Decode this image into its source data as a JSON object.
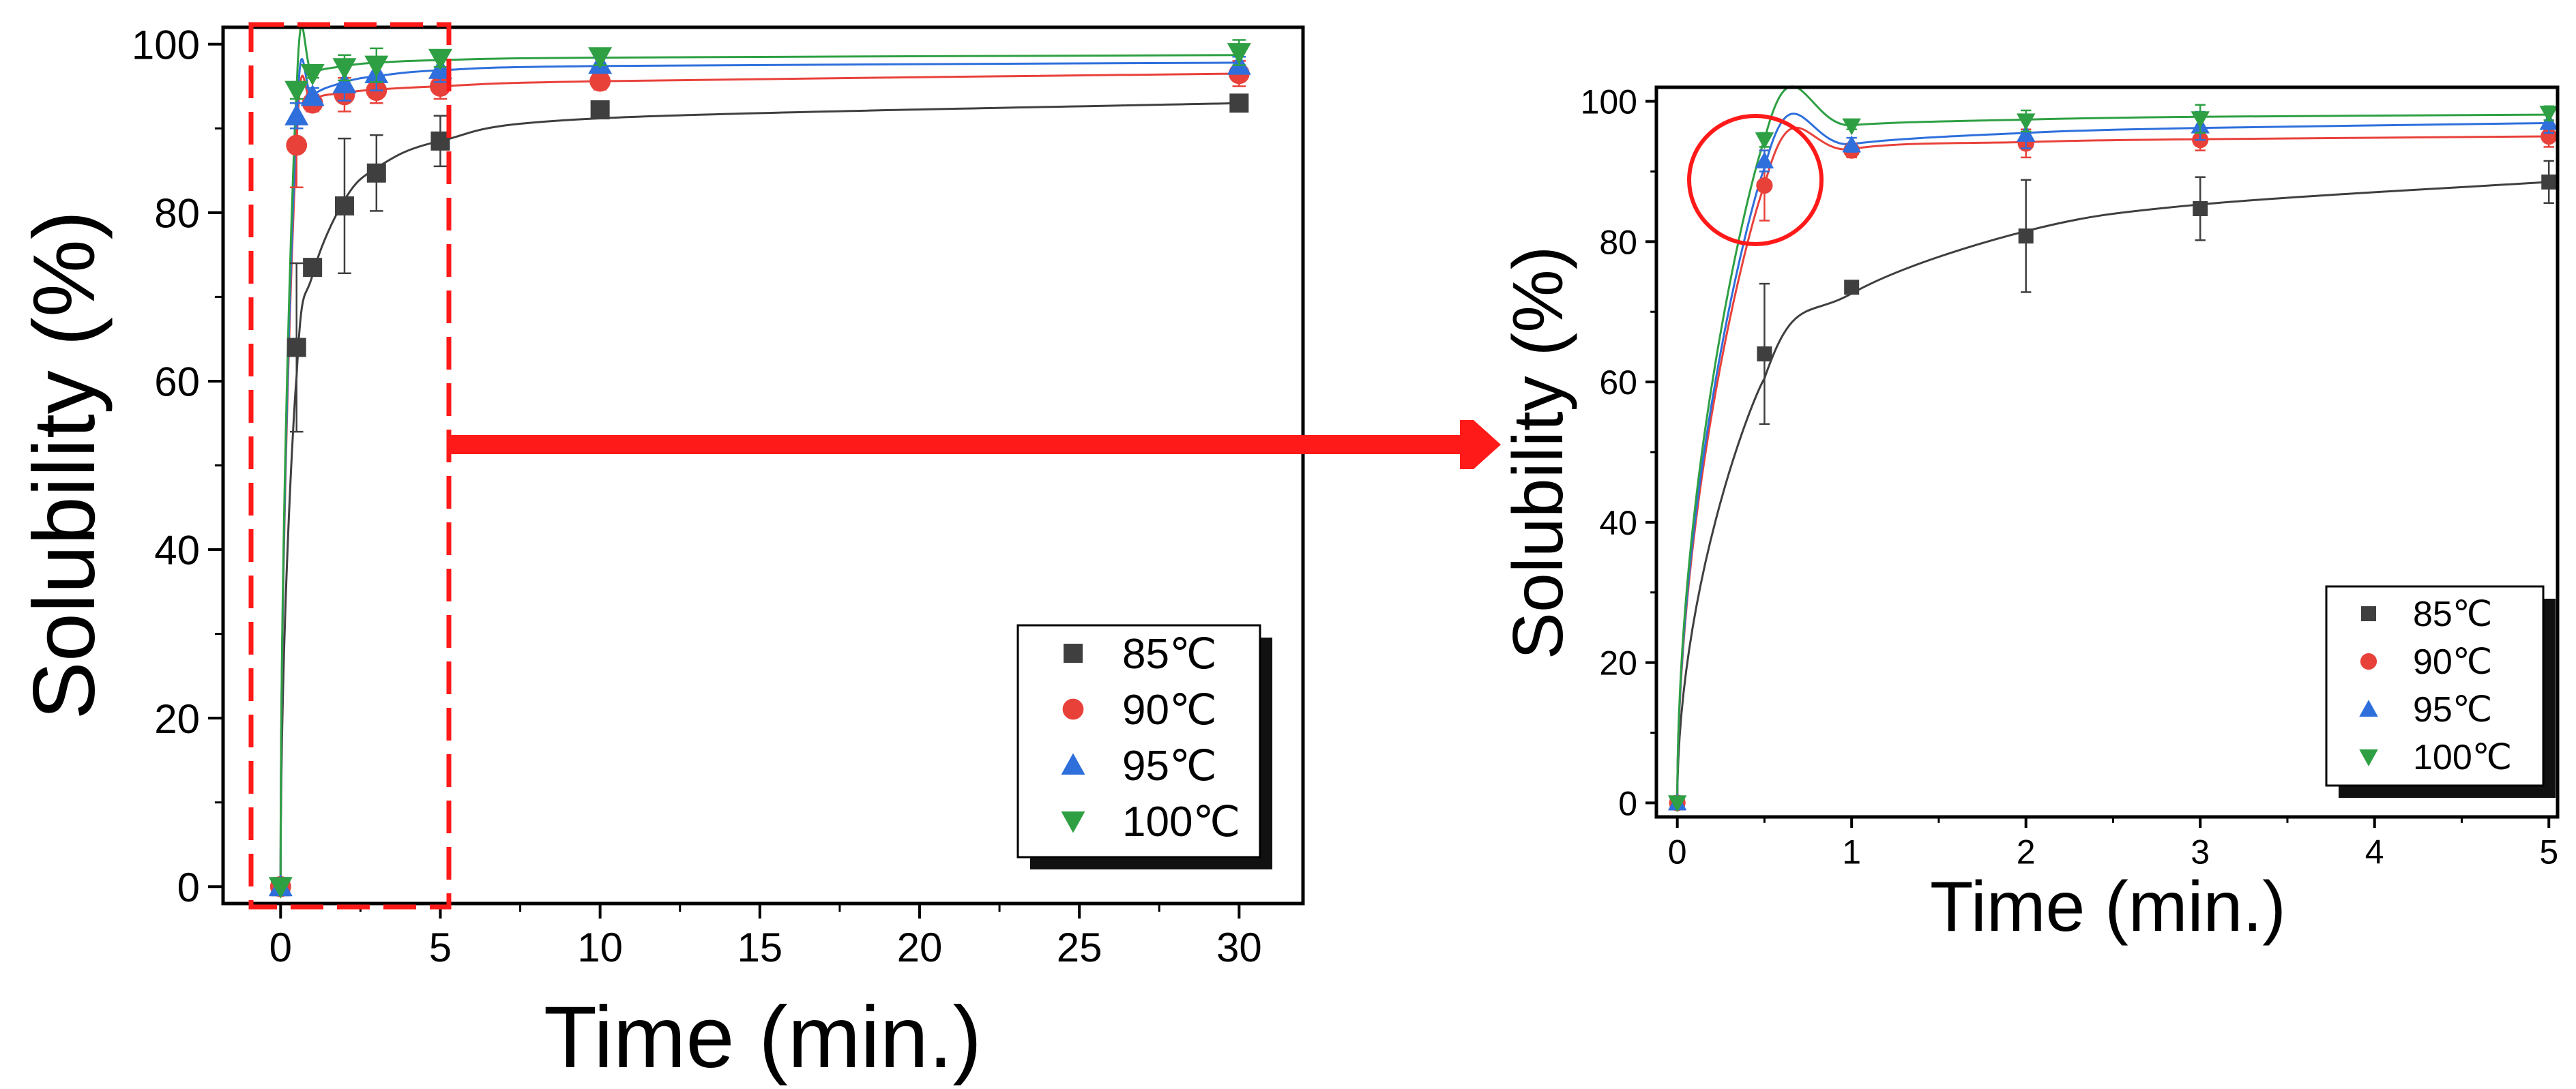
{
  "chart_data": [
    {
      "type": "scatter",
      "panel": "full-range",
      "title": "",
      "xlabel": "Time (min.)",
      "ylabel": "Solubility (%)",
      "xlim": [
        -1.8,
        32
      ],
      "ylim": [
        -2,
        102
      ],
      "xticks": [
        0,
        5,
        10,
        15,
        20,
        25,
        30
      ],
      "yticks": [
        0,
        20,
        40,
        60,
        80,
        100
      ],
      "x": [
        0,
        0.5,
        1,
        2,
        3,
        5,
        10,
        30
      ],
      "series": [
        {
          "name": "85℃",
          "color": "#3f3f3f",
          "marker": "square",
          "values": [
            0,
            64,
            73.5,
            80.8,
            84.7,
            88.5,
            92.2,
            93
          ],
          "errors": [
            0,
            10,
            0.5,
            8,
            4.5,
            3,
            0.8,
            0.8
          ],
          "fit": [
            0,
            60.5,
            72.6,
            81.5,
            85.3,
            88.5,
            91.2,
            93
          ]
        },
        {
          "name": "90℃",
          "color": "#e8413a",
          "marker": "circle",
          "values": [
            0,
            88,
            93,
            94,
            94.5,
            95,
            95.6,
            96.5
          ],
          "errors": [
            0,
            5,
            1,
            2,
            1.5,
            1.5,
            1,
            1.5
          ],
          "fit": [
            0,
            88,
            93.2,
            94.2,
            94.6,
            95,
            95.6,
            96.5
          ]
        },
        {
          "name": "95℃",
          "color": "#2e6fdc",
          "marker": "triangle-up",
          "values": [
            0,
            91.5,
            93.8,
            95.3,
            96.5,
            97,
            97.6,
            97.5
          ],
          "errors": [
            0,
            1.5,
            1,
            2,
            2,
            1.5,
            0.8,
            1
          ],
          "fit": [
            0,
            90.5,
            93.9,
            95.5,
            96.2,
            96.9,
            97.4,
            97.8
          ]
        },
        {
          "name": "100℃",
          "color": "#2ea043",
          "marker": "triangle-down",
          "values": [
            0,
            94.5,
            96.5,
            97.2,
            97.5,
            98.3,
            98.5,
            99
          ],
          "errors": [
            0,
            1,
            0.5,
            1.5,
            2,
            1,
            1,
            1.5
          ],
          "fit": [
            0,
            94.5,
            96.6,
            97.4,
            97.8,
            98.1,
            98.4,
            98.7
          ]
        }
      ],
      "legend": {
        "position": "bottom-right",
        "entries": [
          "85℃",
          "90℃",
          "95℃",
          "100℃"
        ]
      },
      "annotations": [
        "dashed red box over 0–5 min region",
        "red arrow pointing to zoomed panel"
      ]
    },
    {
      "type": "scatter",
      "panel": "zoomed 0–5 min",
      "title": "",
      "xlabel": "Time (min.)",
      "ylabel": "Solubility (%)",
      "xlim": [
        -0.12,
        5.05
      ],
      "ylim": [
        -2,
        102
      ],
      "xticks": [
        0,
        1,
        2,
        3,
        4,
        5
      ],
      "yticks": [
        0,
        20,
        40,
        60,
        80,
        100
      ],
      "x": [
        0,
        0.5,
        1,
        2,
        3,
        5
      ],
      "series": [
        {
          "name": "85℃",
          "color": "#3f3f3f",
          "marker": "square",
          "values": [
            0,
            64,
            73.5,
            80.8,
            84.7,
            88.5
          ],
          "errors": [
            0,
            10,
            0.5,
            8,
            4.5,
            3
          ],
          "fit": [
            0,
            60.5,
            72.6,
            81.5,
            85.3,
            88.5
          ]
        },
        {
          "name": "90℃",
          "color": "#e8413a",
          "marker": "circle",
          "values": [
            0,
            88,
            93,
            94,
            94.5,
            95
          ],
          "errors": [
            0,
            5,
            1,
            2,
            1.5,
            1.5
          ],
          "fit": [
            0,
            88,
            93.2,
            94.2,
            94.6,
            95
          ]
        },
        {
          "name": "95℃",
          "color": "#2e6fdc",
          "marker": "triangle-up",
          "values": [
            0,
            91.5,
            93.8,
            95.3,
            96.5,
            97
          ],
          "errors": [
            0,
            1.5,
            1,
            2,
            2,
            1.5
          ],
          "fit": [
            0,
            90.5,
            93.9,
            95.5,
            96.2,
            96.9
          ]
        },
        {
          "name": "100℃",
          "color": "#2ea043",
          "marker": "triangle-down",
          "values": [
            0,
            94.5,
            96.5,
            97.2,
            97.5,
            98.3
          ],
          "errors": [
            0,
            1,
            0.5,
            1.5,
            2,
            1
          ],
          "fit": [
            0,
            94.5,
            96.6,
            97.4,
            97.8,
            98.1
          ]
        }
      ],
      "legend": {
        "position": "bottom-right",
        "entries": [
          "85℃",
          "90℃",
          "95℃",
          "100℃"
        ]
      },
      "annotations": [
        "red circle highlighting points at 0.5 min"
      ]
    }
  ]
}
